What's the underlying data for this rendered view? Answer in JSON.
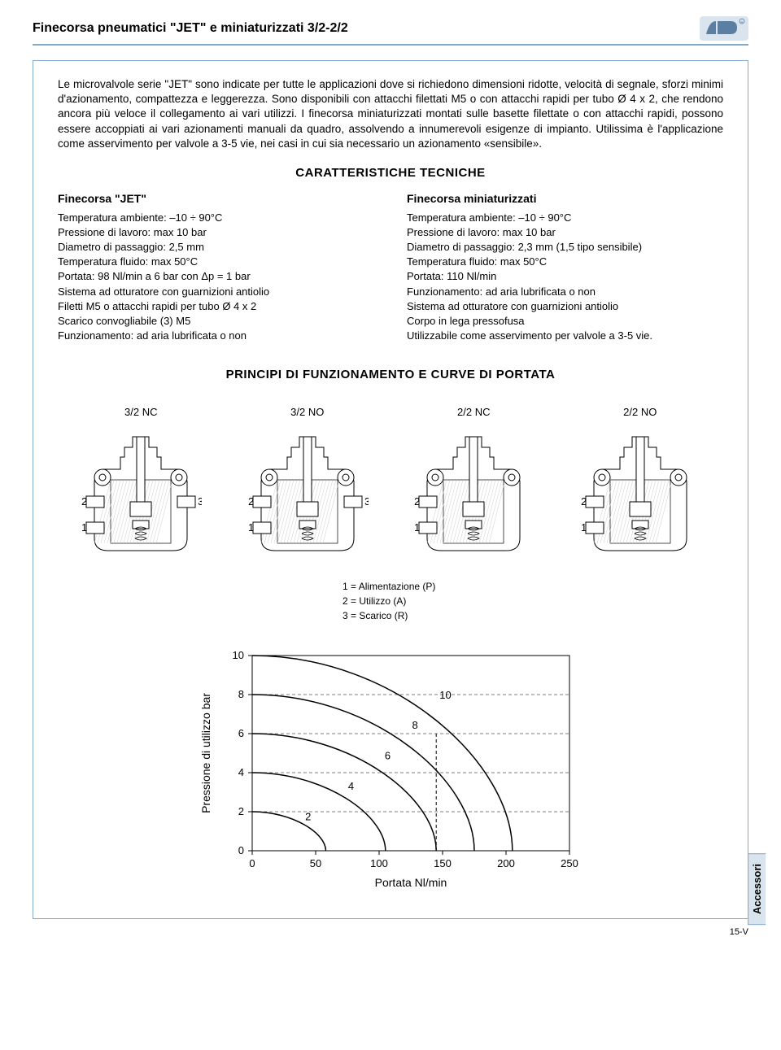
{
  "header": {
    "title": "Finecorsa pneumatici \"JET\" e miniaturizzati 3/2-2/2"
  },
  "intro": "Le microvalvole serie \"JET\" sono indicate per tutte le applicazioni dove si richiedono dimensioni ridotte, velocità di segnale, sforzi minimi d'azionamento, compattezza e leggerezza. Sono disponibili con attacchi filettati M5 o con attacchi rapidi per tubo Ø 4 x 2, che rendono ancora più veloce il collegamento ai vari utilizzi. I finecorsa miniaturizzati montati sulle basette filettate o con attacchi rapidi, possono essere accoppiati ai vari azionamenti manuali da quadro, assolvendo a innumerevoli esigenze di impianto. Utilissima è l'applicazione come asservimento per valvole a 3-5 vie, nei casi in cui sia necessario un azionamento «sensibile».",
  "tech_specs_title": "CARATTERISTICHE TECNICHE",
  "spec_col1": {
    "title": "Finecorsa \"JET\"",
    "lines": [
      "Temperatura ambiente: –10 ÷ 90°C",
      "Pressione di lavoro: max 10 bar",
      "Diametro di passaggio: 2,5 mm",
      "Temperatura fluido: max 50°C",
      "Portata: 98 Nl/min a 6 bar con Δp = 1 bar",
      "Sistema ad otturatore con guarnizioni antiolio",
      "Filetti M5 o attacchi rapidi per tubo Ø 4 x 2",
      "Scarico convogliabile (3) M5",
      "Funzionamento: ad aria lubrificata o non"
    ]
  },
  "spec_col2": {
    "title": "Finecorsa miniaturizzati",
    "lines": [
      "Temperatura ambiente: –10 ÷ 90°C",
      "Pressione di lavoro: max 10 bar",
      "Diametro di passaggio: 2,3 mm (1,5 tipo sensibile)",
      "Temperatura fluido: max 50°C",
      "Portata: 110 Nl/min",
      "Funzionamento: ad aria lubrificata o non",
      "Sistema ad otturatore con guarnizioni antiolio",
      "Corpo in lega pressofusa",
      "Utilizzabile come asservimento per valvole a 3-5 vie."
    ]
  },
  "principles_title": "PRINCIPI DI FUNZIONAMENTO E CURVE DI PORTATA",
  "diagrams": [
    {
      "label": "3/2 NC",
      "ports": [
        "2",
        "3",
        "1"
      ]
    },
    {
      "label": "3/2 NO",
      "ports": [
        "2",
        "3",
        "1"
      ]
    },
    {
      "label": "2/2 NC",
      "ports": [
        "2",
        "1"
      ]
    },
    {
      "label": "2/2 NO",
      "ports": [
        "2",
        "1"
      ]
    }
  ],
  "legend": [
    "1 = Alimentazione (P)",
    "2 = Utilizzo (A)",
    "3 = Scarico (R)"
  ],
  "chart": {
    "ylabel": "Pressione di utilizzo bar",
    "xlabel": "Portata Nl/min",
    "xlim": [
      0,
      250
    ],
    "ylim": [
      0,
      10
    ],
    "xticks": [
      0,
      50,
      100,
      150,
      200,
      250
    ],
    "yticks": [
      0,
      2,
      4,
      6,
      8,
      10
    ],
    "curves": [
      {
        "label": "2",
        "end_x": 58
      },
      {
        "label": "4",
        "end_x": 105
      },
      {
        "label": "6",
        "end_x": 145
      },
      {
        "label": "8",
        "end_x": 175
      },
      {
        "label": "10",
        "end_x": 205
      }
    ],
    "vdash_x": 145,
    "vdash_y_top": 6,
    "line_color": "#000000",
    "grid_color": "#000000",
    "background": "#ffffff"
  },
  "side_tab": "Accessori",
  "page_num": "15-V"
}
